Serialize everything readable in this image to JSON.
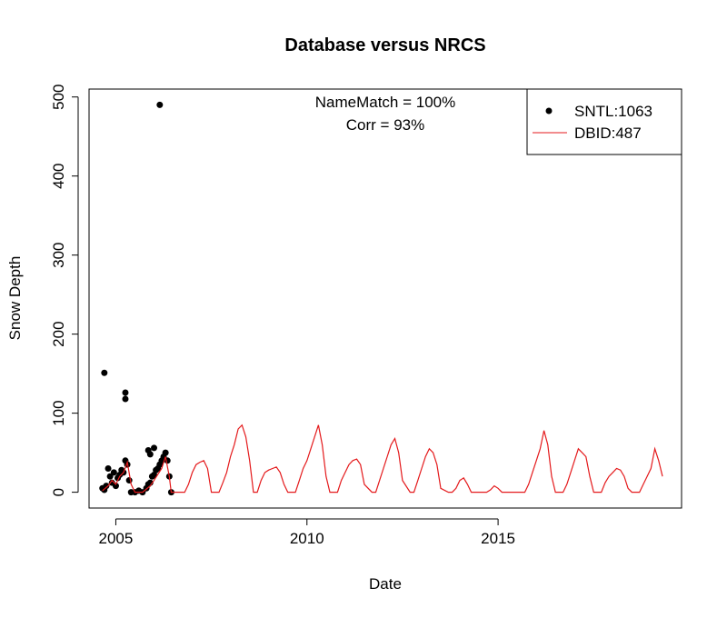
{
  "chart_data": {
    "type": "scatter",
    "title": "Database versus NRCS",
    "xlabel": "Date",
    "ylabel": "Snow Depth",
    "xlim": [
      2004.3,
      2019.8
    ],
    "ylim": [
      -20,
      510
    ],
    "xticks": [
      2005,
      2010,
      2015
    ],
    "yticks": [
      0,
      100,
      200,
      300,
      400,
      500
    ],
    "annotations": [
      "NameMatch = 100%",
      "Corr = 93%"
    ],
    "legend_position": "top-right",
    "grid": false,
    "series": [
      {
        "name": "SNTL:1063",
        "kind": "points",
        "color": "#000000",
        "x": [
          2004.65,
          2004.7,
          2004.75,
          2004.8,
          2004.85,
          2004.9,
          2004.95,
          2005.0,
          2005.05,
          2005.1,
          2005.15,
          2005.2,
          2005.25,
          2005.3,
          2005.35,
          2005.4,
          2005.5,
          2005.6,
          2005.7,
          2005.8,
          2005.85,
          2005.9,
          2005.95,
          2006.0,
          2006.05,
          2006.1,
          2006.15,
          2006.2,
          2006.25,
          2006.3,
          2006.35,
          2006.4,
          2006.45,
          2004.7,
          2005.25,
          2005.25,
          2005.85,
          2005.9,
          2006.0,
          2006.15
        ],
        "y": [
          5,
          3,
          8,
          30,
          20,
          12,
          25,
          8,
          18,
          22,
          28,
          25,
          40,
          35,
          15,
          0,
          0,
          2,
          0,
          5,
          10,
          12,
          20,
          22,
          28,
          30,
          35,
          40,
          45,
          50,
          40,
          20,
          0,
          151,
          126,
          118,
          53,
          48,
          56,
          490
        ]
      },
      {
        "name": "DBID:487",
        "kind": "line",
        "color": "#e41a1c",
        "x": [
          2004.65,
          2004.8,
          2004.9,
          2005.0,
          2005.1,
          2005.2,
          2005.3,
          2005.4,
          2005.5,
          2005.7,
          2005.9,
          2006.0,
          2006.2,
          2006.3,
          2006.4,
          2006.45,
          2006.8,
          2006.9,
          2007.0,
          2007.1,
          2007.2,
          2007.3,
          2007.4,
          2007.5,
          2007.7,
          2007.8,
          2007.9,
          2008.0,
          2008.1,
          2008.2,
          2008.3,
          2008.4,
          2008.5,
          2008.6,
          2008.7,
          2008.8,
          2008.9,
          2009.0,
          2009.1,
          2009.2,
          2009.3,
          2009.4,
          2009.5,
          2009.7,
          2009.8,
          2009.9,
          2010.0,
          2010.1,
          2010.2,
          2010.3,
          2010.4,
          2010.5,
          2010.6,
          2010.8,
          2010.9,
          2011.0,
          2011.1,
          2011.2,
          2011.3,
          2011.4,
          2011.5,
          2011.7,
          2011.8,
          2011.9,
          2012.0,
          2012.1,
          2012.2,
          2012.3,
          2012.4,
          2012.5,
          2012.7,
          2012.8,
          2012.9,
          2013.0,
          2013.1,
          2013.2,
          2013.3,
          2013.4,
          2013.5,
          2013.7,
          2013.8,
          2013.9,
          2014.0,
          2014.1,
          2014.2,
          2014.3,
          2014.5,
          2014.7,
          2014.8,
          2014.9,
          2015.0,
          2015.1,
          2015.2,
          2015.4,
          2015.7,
          2015.8,
          2015.9,
          2016.0,
          2016.1,
          2016.2,
          2016.3,
          2016.4,
          2016.5,
          2016.7,
          2016.8,
          2016.9,
          2017.0,
          2017.1,
          2017.2,
          2017.3,
          2017.4,
          2017.5,
          2017.7,
          2017.8,
          2017.9,
          2018.0,
          2018.1,
          2018.2,
          2018.3,
          2018.4,
          2018.5,
          2018.7,
          2018.8,
          2018.9,
          2019.0,
          2019.1,
          2019.2,
          2019.3
        ],
        "y": [
          2,
          8,
          15,
          10,
          20,
          25,
          38,
          10,
          0,
          0,
          8,
          15,
          30,
          45,
          20,
          0,
          0,
          10,
          25,
          35,
          38,
          40,
          30,
          0,
          0,
          12,
          25,
          45,
          60,
          80,
          85,
          70,
          40,
          0,
          0,
          15,
          25,
          28,
          30,
          32,
          25,
          10,
          0,
          0,
          15,
          30,
          40,
          55,
          70,
          85,
          60,
          20,
          0,
          0,
          15,
          25,
          35,
          40,
          42,
          35,
          10,
          0,
          0,
          15,
          30,
          45,
          60,
          68,
          50,
          15,
          0,
          0,
          15,
          30,
          45,
          55,
          50,
          35,
          5,
          0,
          0,
          5,
          15,
          18,
          10,
          0,
          0,
          0,
          3,
          8,
          5,
          0,
          0,
          0,
          0,
          10,
          25,
          40,
          55,
          78,
          60,
          20,
          0,
          0,
          10,
          25,
          40,
          55,
          50,
          45,
          20,
          0,
          0,
          12,
          20,
          25,
          30,
          28,
          20,
          5,
          0,
          0,
          10,
          20,
          30,
          55,
          40,
          20
        ]
      }
    ]
  }
}
